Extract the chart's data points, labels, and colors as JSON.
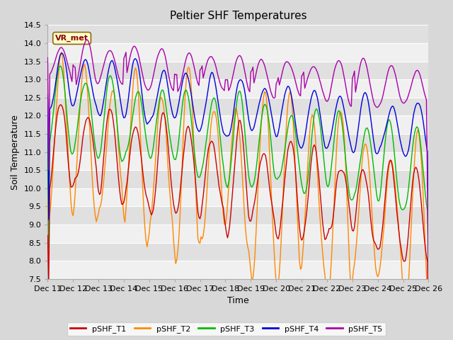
{
  "title": "Peltier SHF Temperatures",
  "xlabel": "Time",
  "ylabel": "Soil Temperature",
  "ylim": [
    7.5,
    14.5
  ],
  "xlim": [
    0,
    360
  ],
  "yticks": [
    7.5,
    8.0,
    8.5,
    9.0,
    9.5,
    10.0,
    10.5,
    11.0,
    11.5,
    12.0,
    12.5,
    13.0,
    13.5,
    14.0,
    14.5
  ],
  "xtick_positions": [
    0,
    24,
    48,
    72,
    96,
    120,
    144,
    168,
    192,
    216,
    240,
    264,
    288,
    312,
    336,
    360
  ],
  "xtick_labels": [
    "Dec 11",
    "Dec 12",
    "Dec 13",
    "Dec 14",
    "Dec 15",
    "Dec 16",
    "Dec 17",
    "Dec 18",
    "Dec 19",
    "Dec 20",
    "Dec 21",
    "Dec 22",
    "Dec 23",
    "Dec 24",
    "Dec 25",
    "Dec 26"
  ],
  "line_colors": {
    "pSHF_T1": "#cc0000",
    "pSHF_T2": "#ff8800",
    "pSHF_T3": "#00bb00",
    "pSHF_T4": "#0000dd",
    "pSHF_T5": "#aa00aa"
  },
  "line_width": 1.0,
  "legend_entries": [
    "pSHF_T1",
    "pSHF_T2",
    "pSHF_T3",
    "pSHF_T4",
    "pSHF_T5"
  ],
  "annotation_text": "VR_met",
  "background_color": "#d8d8d8",
  "plot_bg_color": "#e8e8e8",
  "band_color_light": "#f0f0f0",
  "band_color_dark": "#e0e0e0",
  "title_fontsize": 11,
  "axis_fontsize": 9,
  "tick_fontsize": 8
}
